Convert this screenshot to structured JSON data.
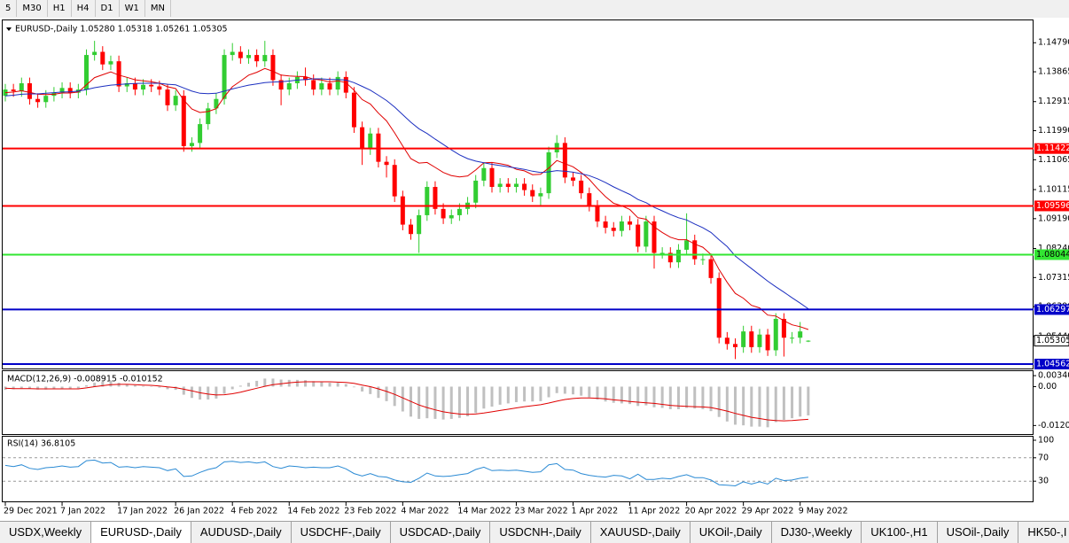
{
  "toolbar": [
    "5",
    "M30",
    "H1",
    "H4",
    "D1",
    "W1",
    "MN"
  ],
  "tabs": [
    "USDX,Weekly",
    "EURUSD-,Daily",
    "AUDUSD-,Daily",
    "USDCHF-,Daily",
    "USDCAD-,Daily",
    "USDCNH-,Daily",
    "XAUUSD-,Daily",
    "UKOil-,Daily",
    "DJ30-,Weekly",
    "UK100-,H1",
    "USOil-,Daily",
    "HK50-,I"
  ],
  "active_tab": 1,
  "chart_data": [
    {
      "type": "candlestick",
      "title": "EURUSD-,Daily  1.05280 1.05318 1.05261 1.05305",
      "open": [
        1.131,
        1.133,
        1.1325,
        1.135,
        1.13,
        1.129,
        1.131,
        1.132,
        1.1335,
        1.132,
        1.133,
        1.144,
        1.145,
        1.141,
        1.142,
        1.134,
        1.135,
        1.133,
        1.1345,
        1.134,
        1.133,
        1.128,
        1.131,
        1.115,
        1.116,
        1.122,
        1.127,
        1.13,
        1.144,
        1.145,
        1.143,
        1.144,
        1.142,
        1.144,
        1.136,
        1.133,
        1.135,
        1.137,
        1.136,
        1.133,
        1.135,
        1.133,
        1.137,
        1.132,
        1.121,
        1.114,
        1.119,
        1.11,
        1.109,
        1.099,
        1.09,
        1.087,
        1.093,
        1.102,
        1.095,
        1.092,
        1.093,
        1.095,
        1.097,
        1.104,
        1.108,
        1.102,
        1.103,
        1.102,
        1.103,
        1.101,
        1.099,
        1.1,
        1.113,
        1.116,
        1.105,
        1.104,
        1.1,
        1.096,
        1.091,
        1.089,
        1.088,
        1.091,
        1.09,
        1.083,
        1.091,
        1.081,
        1.081,
        1.078,
        1.082,
        1.085,
        1.079,
        1.079,
        1.073,
        1.054,
        1.052,
        1.051,
        1.056,
        1.051,
        1.055,
        1.05,
        1.06,
        1.054,
        1.054,
        1.0528
      ],
      "high": [
        1.1348,
        1.1348,
        1.1368,
        1.1368,
        1.1318,
        1.1328,
        1.1338,
        1.1353,
        1.1353,
        1.1348,
        1.1458,
        1.1485,
        1.1468,
        1.1438,
        1.1438,
        1.1368,
        1.1368,
        1.1363,
        1.1363,
        1.1358,
        1.1348,
        1.1328,
        1.1328,
        1.1178,
        1.1238,
        1.1288,
        1.1318,
        1.1458,
        1.1478,
        1.1468,
        1.1458,
        1.1458,
        1.1485,
        1.1458,
        1.1378,
        1.1368,
        1.1388,
        1.14,
        1.1378,
        1.1368,
        1.1368,
        1.1388,
        1.1388,
        1.1338,
        1.1228,
        1.1208,
        1.1208,
        1.1118,
        1.1108,
        1.1008,
        1.0918,
        1.0948,
        1.1038,
        1.1038,
        1.0968,
        1.0948,
        1.0968,
        1.0988,
        1.1058,
        1.1098,
        1.1098,
        1.1048,
        1.1048,
        1.1048,
        1.1048,
        1.1028,
        1.1018,
        1.1148,
        1.1185,
        1.1178,
        1.1068,
        1.1058,
        1.1018,
        1.0978,
        1.0928,
        1.0908,
        1.0928,
        1.0928,
        1.0918,
        1.0928,
        1.0928,
        1.0828,
        1.0828,
        1.0838,
        1.0936,
        1.0868,
        1.0808,
        1.0808,
        1.0748,
        1.0558,
        1.0538,
        1.0578,
        1.0578,
        1.0568,
        1.0568,
        1.0618,
        1.0618,
        1.0558,
        1.059,
        1.05318
      ],
      "low": [
        1.1292,
        1.1307,
        1.1307,
        1.1282,
        1.1272,
        1.1272,
        1.1292,
        1.1302,
        1.1302,
        1.1302,
        1.1312,
        1.1422,
        1.1392,
        1.1392,
        1.1322,
        1.1322,
        1.1312,
        1.1312,
        1.1322,
        1.1312,
        1.1262,
        1.1262,
        1.1132,
        1.1132,
        1.1142,
        1.1202,
        1.1252,
        1.1282,
        1.1422,
        1.1412,
        1.1412,
        1.1402,
        1.1402,
        1.1342,
        1.128,
        1.1312,
        1.1332,
        1.1342,
        1.1312,
        1.1312,
        1.1312,
        1.1312,
        1.1302,
        1.1192,
        1.109,
        1.1122,
        1.1082,
        1.105,
        1.0972,
        1.0882,
        1.0852,
        1.081,
        1.0912,
        1.0932,
        1.0902,
        1.0902,
        1.0912,
        1.0932,
        1.0952,
        1.1022,
        1.1002,
        1.1002,
        1.1002,
        1.1002,
        1.0992,
        1.0972,
        1.096,
        1.0982,
        1.1112,
        1.1032,
        1.1022,
        1.0982,
        1.0942,
        1.0892,
        1.0872,
        1.0862,
        1.0862,
        1.0882,
        1.0812,
        1.0812,
        1.076,
        1.0792,
        1.0762,
        1.0762,
        1.0802,
        1.0772,
        1.0772,
        1.0712,
        1.0522,
        1.0502,
        1.0472,
        1.0492,
        1.0492,
        1.0492,
        1.0482,
        1.0482,
        1.048,
        1.0522,
        1.0522,
        1.05261
      ],
      "close": [
        1.133,
        1.1325,
        1.135,
        1.13,
        1.129,
        1.131,
        1.132,
        1.1335,
        1.132,
        1.133,
        1.144,
        1.145,
        1.141,
        1.142,
        1.134,
        1.135,
        1.133,
        1.1345,
        1.134,
        1.133,
        1.128,
        1.131,
        1.115,
        1.116,
        1.122,
        1.127,
        1.13,
        1.144,
        1.145,
        1.143,
        1.144,
        1.142,
        1.144,
        1.136,
        1.133,
        1.135,
        1.137,
        1.136,
        1.133,
        1.135,
        1.133,
        1.137,
        1.132,
        1.121,
        1.114,
        1.119,
        1.11,
        1.109,
        1.099,
        1.09,
        1.087,
        1.093,
        1.102,
        1.095,
        1.092,
        1.093,
        1.095,
        1.097,
        1.104,
        1.108,
        1.102,
        1.103,
        1.102,
        1.103,
        1.101,
        1.099,
        1.1,
        1.113,
        1.116,
        1.105,
        1.104,
        1.1,
        1.096,
        1.091,
        1.089,
        1.088,
        1.091,
        1.09,
        1.083,
        1.091,
        1.081,
        1.081,
        1.078,
        1.082,
        1.085,
        1.079,
        1.079,
        1.073,
        1.054,
        1.052,
        1.051,
        1.056,
        1.051,
        1.055,
        1.05,
        1.06,
        1.054,
        1.054,
        1.056,
        1.05305
      ],
      "ma_fast": [
        1.132,
        1.1322,
        1.1326,
        1.1321,
        1.1315,
        1.1314,
        1.1315,
        1.1319,
        1.1319,
        1.1322,
        1.1345,
        1.1368,
        1.1377,
        1.1386,
        1.1376,
        1.1369,
        1.1361,
        1.1358,
        1.1355,
        1.135,
        1.1339,
        1.1333,
        1.1296,
        1.1268,
        1.1257,
        1.126,
        1.1269,
        1.1307,
        1.1339,
        1.1357,
        1.1376,
        1.1385,
        1.1397,
        1.1388,
        1.1376,
        1.1373,
        1.1372,
        1.1371,
        1.1363,
        1.136,
        1.1354,
        1.1358,
        1.1352,
        1.1328,
        1.1298,
        1.1284,
        1.1255,
        1.123,
        1.1192,
        1.115,
        1.111,
        1.1096,
        1.1098,
        1.1082,
        1.1066,
        1.1056,
        1.1052,
        1.1055,
        1.1074,
        1.1097,
        1.1098,
        1.1094,
        1.1089,
        1.1076,
        1.1071,
        1.1059,
        1.106,
        1.108,
        1.1104,
        1.1094,
        1.1084,
        1.1066,
        1.1044,
        1.1015,
        1.0989,
        1.0968,
        1.096,
        1.0948,
        1.0922,
        1.0917,
        1.0893,
        1.0875,
        1.086,
        1.0852,
        1.0852,
        1.0838,
        1.0828,
        1.0805,
        1.0757,
        1.0716,
        1.0681,
        1.0666,
        1.0643,
        1.0635,
        1.0612,
        1.0609,
        1.0594,
        1.0581,
        1.0575,
        1.0566
      ],
      "ma_slow": [
        1.131,
        1.1312,
        1.1315,
        1.1316,
        1.1316,
        1.1318,
        1.132,
        1.1322,
        1.1323,
        1.1325,
        1.133,
        1.1336,
        1.134,
        1.1344,
        1.1346,
        1.1348,
        1.1349,
        1.135,
        1.135,
        1.135,
        1.1347,
        1.1345,
        1.1335,
        1.1325,
        1.1318,
        1.1317,
        1.1318,
        1.1325,
        1.1332,
        1.1338,
        1.1344,
        1.1348,
        1.1352,
        1.1354,
        1.1355,
        1.1357,
        1.136,
        1.1362,
        1.1364,
        1.1364,
        1.1362,
        1.1362,
        1.136,
        1.1352,
        1.134,
        1.1328,
        1.1312,
        1.1295,
        1.1274,
        1.125,
        1.1226,
        1.1205,
        1.119,
        1.1172,
        1.1155,
        1.1138,
        1.1122,
        1.111,
        1.1102,
        1.1097,
        1.1092,
        1.1088,
        1.1084,
        1.108,
        1.1076,
        1.107,
        1.1066,
        1.1068,
        1.1072,
        1.107,
        1.1067,
        1.1062,
        1.1056,
        1.1046,
        1.1034,
        1.102,
        1.1008,
        1.0996,
        1.098,
        1.097,
        1.0955,
        1.0944,
        1.0932,
        1.0922,
        1.0915,
        1.0902,
        1.089,
        1.0875,
        1.0852,
        1.083,
        1.08,
        1.078,
        1.076,
        1.074,
        1.072,
        1.0702,
        1.0685,
        1.0667,
        1.065,
        1.0632
      ],
      "colors": {
        "up": "#32cd32",
        "down": "#ff0000",
        "ma_fast": "#e00000",
        "ma_slow": "#1c2fc0"
      },
      "ylim": [
        1.0442,
        1.1553
      ],
      "yticks": [
        {
          "value": 1.1479,
          "label": "1.14790"
        },
        1.13865,
        1.12915,
        {
          "value": 1.1199,
          "label": "1.11990"
        },
        1.11065,
        1.10115,
        {
          "value": 1.0919,
          "label": "1.09190"
        },
        {
          "value": 1.0824,
          "label": "1.08240"
        },
        1.07315,
        {
          "value": 1.0639,
          "label": "1.06390"
        },
        {
          "value": 1.0544,
          "label": "1.05440"
        }
      ],
      "levels": [
        {
          "value": 1.11422,
          "color": "#ff0000",
          "label_color": "#ffffff"
        },
        {
          "value": 1.09596,
          "color": "#ff0000",
          "label_color": "#ffffff"
        },
        {
          "value": 1.08044,
          "color": "#32e632",
          "label_color": "#000000"
        },
        {
          "value": 1.06297,
          "color": "#0000c8",
          "label_color": "#ffffff"
        },
        {
          "value": 1.04562,
          "color": "#0000c8",
          "label_color": "#ffffff"
        }
      ],
      "xticks": [
        {
          "value": 0,
          "label": "29 Dec 2021"
        },
        {
          "value": 7,
          "label": "7 Jan 2022"
        },
        {
          "value": 14,
          "label": "17 Jan 2022"
        },
        {
          "value": 21,
          "label": "26 Jan 2022"
        },
        {
          "value": 28,
          "label": "4 Feb 2022"
        },
        {
          "value": 35,
          "label": "14 Feb 2022"
        },
        {
          "value": 42,
          "label": "23 Feb 2022"
        },
        {
          "value": 49,
          "label": "4 Mar 2022"
        },
        {
          "value": 56,
          "label": "14 Mar 2022"
        },
        {
          "value": 63,
          "label": "23 Mar 2022"
        },
        {
          "value": 70,
          "label": "1 Apr 2022"
        },
        {
          "value": 77,
          "label": "11 Apr 2022"
        },
        {
          "value": 84,
          "label": "20 Apr 2022"
        },
        {
          "value": 91,
          "label": "29 Apr 2022"
        },
        {
          "value": 98,
          "label": "9 May 2022"
        }
      ]
    },
    {
      "type": "bar",
      "title": "MACD(12,26,9) -0.008915 -0.010152",
      "values": [
        -0.001,
        -0.0008,
        -0.0005,
        -0.0007,
        -0.0009,
        -0.0009,
        -0.0008,
        -0.0006,
        -0.0006,
        -0.0005,
        0.0004,
        0.0012,
        0.0015,
        0.0018,
        0.0012,
        0.0008,
        0.0004,
        0.0002,
        0.0,
        -0.0003,
        -0.0008,
        -0.001,
        -0.0025,
        -0.0035,
        -0.004,
        -0.004,
        -0.0037,
        -0.0022,
        -0.0008,
        0.0003,
        0.0012,
        0.0018,
        0.0025,
        0.0025,
        0.0022,
        0.0021,
        0.0021,
        0.002,
        0.0017,
        0.0015,
        0.0012,
        0.0012,
        0.0008,
        -0.0002,
        -0.0015,
        -0.0023,
        -0.0035,
        -0.0045,
        -0.006,
        -0.0077,
        -0.0093,
        -0.01,
        -0.0098,
        -0.01,
        -0.0102,
        -0.01,
        -0.0097,
        -0.0092,
        -0.0082,
        -0.0068,
        -0.0062,
        -0.0056,
        -0.0052,
        -0.0048,
        -0.0046,
        -0.0046,
        -0.0045,
        -0.0033,
        -0.002,
        -0.0022,
        -0.0024,
        -0.0028,
        -0.0033,
        -0.004,
        -0.0046,
        -0.005,
        -0.0052,
        -0.0054,
        -0.006,
        -0.0058,
        -0.0064,
        -0.0066,
        -0.007,
        -0.007,
        -0.0066,
        -0.0068,
        -0.007,
        -0.0076,
        -0.0094,
        -0.0108,
        -0.0118,
        -0.012,
        -0.0124,
        -0.0124,
        -0.0126,
        -0.011,
        -0.0103,
        -0.0098,
        -0.0093,
        -0.008915
      ],
      "signal": [
        -0.0005,
        -0.0006,
        -0.0006,
        -0.0006,
        -0.0007,
        -0.0007,
        -0.0007,
        -0.0007,
        -0.0007,
        -0.0007,
        -0.0004,
        0.0,
        0.0003,
        0.0006,
        0.0007,
        0.0007,
        0.0006,
        0.0005,
        0.0004,
        0.0002,
        -0.0001,
        -0.0003,
        -0.0008,
        -0.0013,
        -0.0019,
        -0.0023,
        -0.0026,
        -0.0025,
        -0.0022,
        -0.0017,
        -0.0011,
        -0.0005,
        0.0001,
        0.0006,
        0.0009,
        0.0012,
        0.0014,
        0.0015,
        0.0015,
        0.0015,
        0.0015,
        0.0014,
        0.0013,
        0.001,
        0.0005,
        0.0,
        -0.0007,
        -0.0015,
        -0.0024,
        -0.0035,
        -0.0046,
        -0.0057,
        -0.0065,
        -0.0072,
        -0.0078,
        -0.0082,
        -0.0085,
        -0.0086,
        -0.0085,
        -0.0082,
        -0.0078,
        -0.0074,
        -0.007,
        -0.0066,
        -0.0062,
        -0.0059,
        -0.0056,
        -0.0051,
        -0.0045,
        -0.004,
        -0.0037,
        -0.0035,
        -0.0035,
        -0.0036,
        -0.0038,
        -0.0041,
        -0.0043,
        -0.0046,
        -0.0048,
        -0.005,
        -0.0052,
        -0.0055,
        -0.0058,
        -0.006,
        -0.0061,
        -0.0062,
        -0.0063,
        -0.0065,
        -0.007,
        -0.0076,
        -0.0083,
        -0.0089,
        -0.0095,
        -0.0099,
        -0.0103,
        -0.0105,
        -0.0106,
        -0.0105,
        -0.0103,
        -0.010152
      ],
      "color": "#c0c0c0",
      "signal_color": "#e00000",
      "ylim": [
        -0.0147,
        0.0048
      ],
      "yticks": [
        0.003406,
        {
          "value": 0,
          "label": "0.00"
        },
        -0.01205
      ]
    },
    {
      "type": "line",
      "title": "RSI(14) 36.8105",
      "values": [
        57,
        55,
        58,
        52,
        50,
        53,
        54,
        56,
        54,
        55,
        65,
        66,
        61,
        62,
        54,
        55,
        53,
        55,
        54,
        53,
        48,
        51,
        38,
        39,
        45,
        50,
        53,
        63,
        64,
        62,
        63,
        61,
        63,
        55,
        52,
        56,
        55,
        53,
        54,
        53,
        53,
        56,
        51,
        43,
        39,
        43,
        38,
        37,
        32,
        29,
        28,
        35,
        44,
        39,
        38,
        39,
        41,
        43,
        50,
        54,
        48,
        49,
        48,
        49,
        47,
        45,
        46,
        58,
        60,
        50,
        49,
        43,
        40,
        38,
        37,
        40,
        39,
        34,
        42,
        33,
        33,
        35,
        34,
        38,
        41,
        36,
        36,
        32,
        24,
        23,
        22,
        29,
        25,
        29,
        25,
        35,
        31,
        32,
        35,
        36.8105
      ],
      "color": "#2a8ad4",
      "ylim": [
        0,
        100
      ],
      "yticks": [
        100,
        70,
        30
      ],
      "levels": [
        70,
        30
      ]
    }
  ]
}
